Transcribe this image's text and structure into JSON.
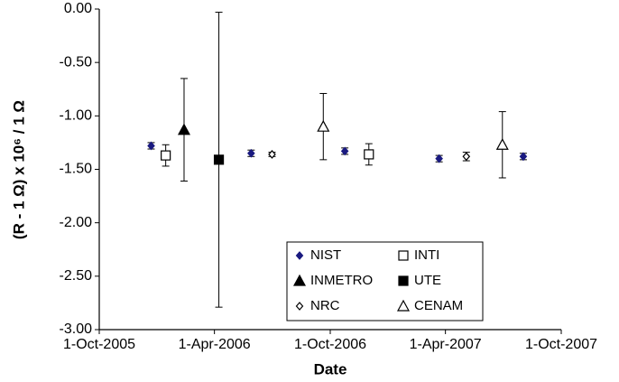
{
  "chart_data": {
    "type": "scatter",
    "x_label": "Date",
    "y_label": "(R - 1 Ω) x 10⁶ / 1 Ω",
    "xlim": [
      "2005-10-01",
      "2007-10-01"
    ],
    "xticks": [
      {
        "value": "2005-10-01",
        "label": "1-Oct-2005"
      },
      {
        "value": "2006-04-01",
        "label": "1-Apr-2006"
      },
      {
        "value": "2006-10-01",
        "label": "1-Oct-2006"
      },
      {
        "value": "2007-04-01",
        "label": "1-Apr-2007"
      },
      {
        "value": "2007-10-01",
        "label": "1-Oct-2007"
      }
    ],
    "ylim": [
      -3,
      0
    ],
    "yticks": [
      {
        "value": 0,
        "label": "0.00"
      },
      {
        "value": -0.5,
        "label": "-0.50"
      },
      {
        "value": -1,
        "label": "-1.00"
      },
      {
        "value": -1.5,
        "label": "-1.50"
      },
      {
        "value": -2,
        "label": "-2.00"
      },
      {
        "value": -2.5,
        "label": "-2.50"
      },
      {
        "value": -3,
        "label": "-3.00"
      }
    ],
    "grid": false,
    "series": [
      {
        "name": "NIST",
        "color": "#1a1a80",
        "marker": "diamond",
        "filled": true,
        "x": [
          "2005-12-22",
          "2006-05-29",
          "2006-10-24",
          "2007-03-22",
          "2007-08-02"
        ],
        "values": [
          -1.28,
          -1.35,
          -1.33,
          -1.4,
          -1.38
        ],
        "errors": [
          0.03,
          0.03,
          0.03,
          0.03,
          0.03
        ]
      },
      {
        "name": "INTI",
        "color": "#000000",
        "marker": "square",
        "filled": false,
        "x": [
          "2006-01-14",
          "2006-12-01"
        ],
        "values": [
          -1.37,
          -1.36
        ],
        "errors": [
          0.1,
          0.1
        ]
      },
      {
        "name": "INMETRO",
        "color": "#000000",
        "marker": "triangle",
        "filled": true,
        "x": [
          "2006-02-12"
        ],
        "values": [
          -1.13
        ],
        "errors": [
          0.48
        ]
      },
      {
        "name": "UTE",
        "color": "#000000",
        "marker": "square",
        "filled": true,
        "x": [
          "2006-04-08"
        ],
        "values": [
          -1.41
        ],
        "errors": [
          1.38
        ]
      },
      {
        "name": "NRC",
        "color": "#000000",
        "marker": "diamond",
        "filled": false,
        "x": [
          "2006-07-01",
          "2007-05-04"
        ],
        "values": [
          -1.36,
          -1.38
        ],
        "errors": [
          0.02,
          0.04
        ]
      },
      {
        "name": "CENAM",
        "color": "#000000",
        "marker": "triangle",
        "filled": false,
        "x": [
          "2006-09-20",
          "2007-06-30"
        ],
        "values": [
          -1.1,
          -1.27
        ],
        "errors": [
          0.31,
          0.31
        ]
      }
    ]
  }
}
